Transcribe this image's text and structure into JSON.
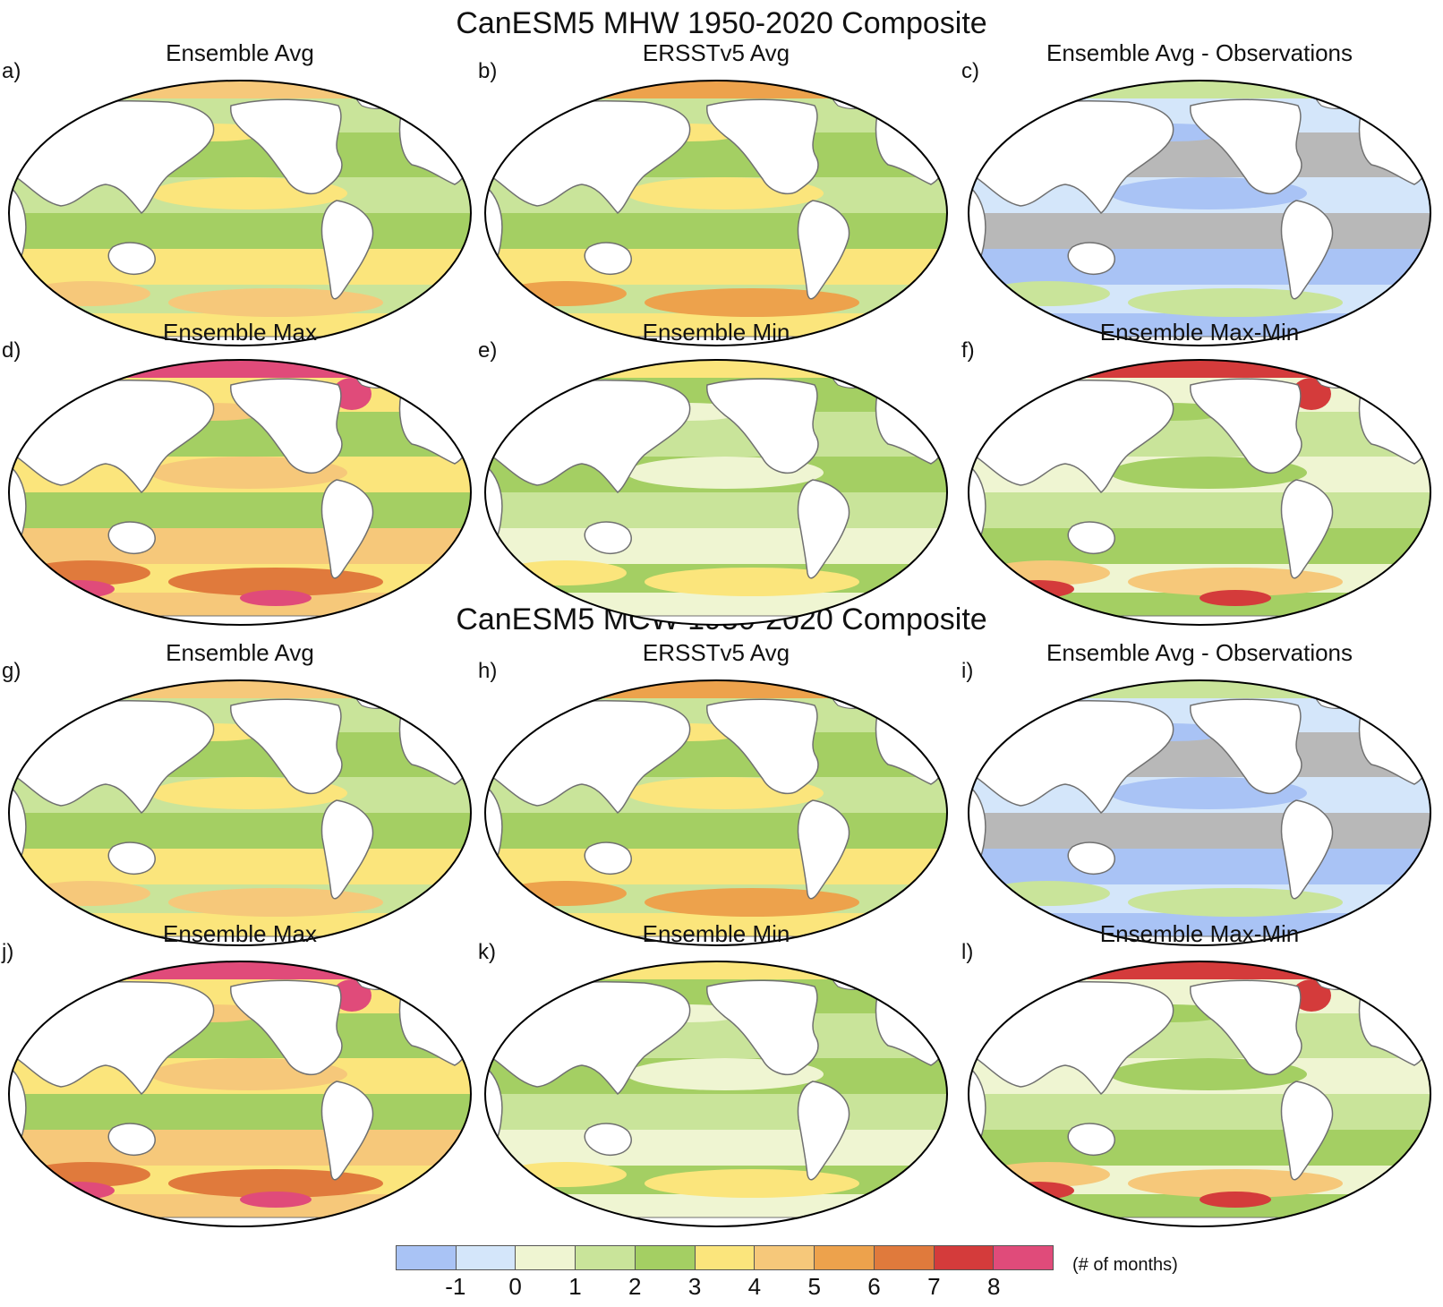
{
  "sections": [
    {
      "title": "CanESM5 MHW 1950-2020 Composite"
    },
    {
      "title": "CanESM5 MCW 1950-2020 Composite"
    }
  ],
  "panels": [
    {
      "letter": "a)",
      "title": "Ensemble Avg",
      "palette": "avg"
    },
    {
      "letter": "b)",
      "title": "ERSSTv5 Avg",
      "palette": "obs"
    },
    {
      "letter": "c)",
      "title": "Ensemble Avg - Observations",
      "palette": "diff"
    },
    {
      "letter": "d)",
      "title": "Ensemble Max",
      "palette": "max"
    },
    {
      "letter": "e)",
      "title": "Ensemble Min",
      "palette": "min"
    },
    {
      "letter": "f)",
      "title": "Ensemble Max-Min",
      "palette": "range"
    },
    {
      "letter": "g)",
      "title": "Ensemble Avg",
      "palette": "avg"
    },
    {
      "letter": "h)",
      "title": "ERSSTv5 Avg",
      "palette": "obs"
    },
    {
      "letter": "i)",
      "title": "Ensemble Avg - Observations",
      "palette": "diff"
    },
    {
      "letter": "j)",
      "title": "Ensemble Max",
      "palette": "max"
    },
    {
      "letter": "k)",
      "title": "Ensemble Min",
      "palette": "min"
    },
    {
      "letter": "l)",
      "title": "Ensemble Max-Min",
      "palette": "range"
    }
  ],
  "colorbar": {
    "colors": [
      "#a9c3f5",
      "#d4e6fa",
      "#eff5d2",
      "#c9e49a",
      "#a4cf63",
      "#fbe57c",
      "#f6c87a",
      "#eda24c",
      "#e07a3c",
      "#d43b3b",
      "#e04b7a"
    ],
    "ticks": [
      "-1",
      "0",
      "1",
      "2",
      "3",
      "4",
      "5",
      "6",
      "7",
      "8"
    ],
    "units": "(# of months)"
  },
  "colors": {
    "land": "#ffffff",
    "coast": "#707070",
    "frame": "#000000",
    "grey": "#b8b8b8"
  }
}
